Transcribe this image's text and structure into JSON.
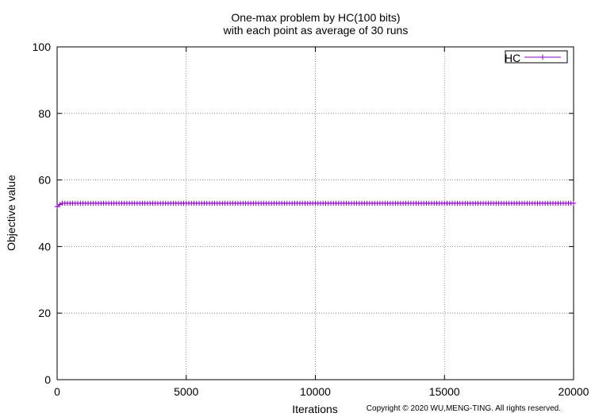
{
  "chart_data": {
    "type": "line",
    "title": "One-max problem by HC(100 bits)",
    "subtitle": "with each point as average of 30 runs",
    "xlabel": "Iterations",
    "ylabel": "Objective value",
    "xlim": [
      0,
      20000
    ],
    "ylim": [
      0,
      100
    ],
    "xticks": [
      0,
      5000,
      10000,
      15000,
      20000
    ],
    "yticks": [
      0,
      20,
      40,
      60,
      80,
      100
    ],
    "grid": true,
    "legend_position": "top-right",
    "marker": "plus",
    "series": [
      {
        "name": "HC",
        "color": "#9400d3",
        "x_start": 0,
        "x_step": 100,
        "x_end": 20000,
        "first_value": 52.0,
        "second_value": 52.6,
        "plateau_value": 53.0
      }
    ]
  },
  "footer": {
    "copyright": "Copyright © 2020 WU,MENG-TING. All rights reserved."
  }
}
